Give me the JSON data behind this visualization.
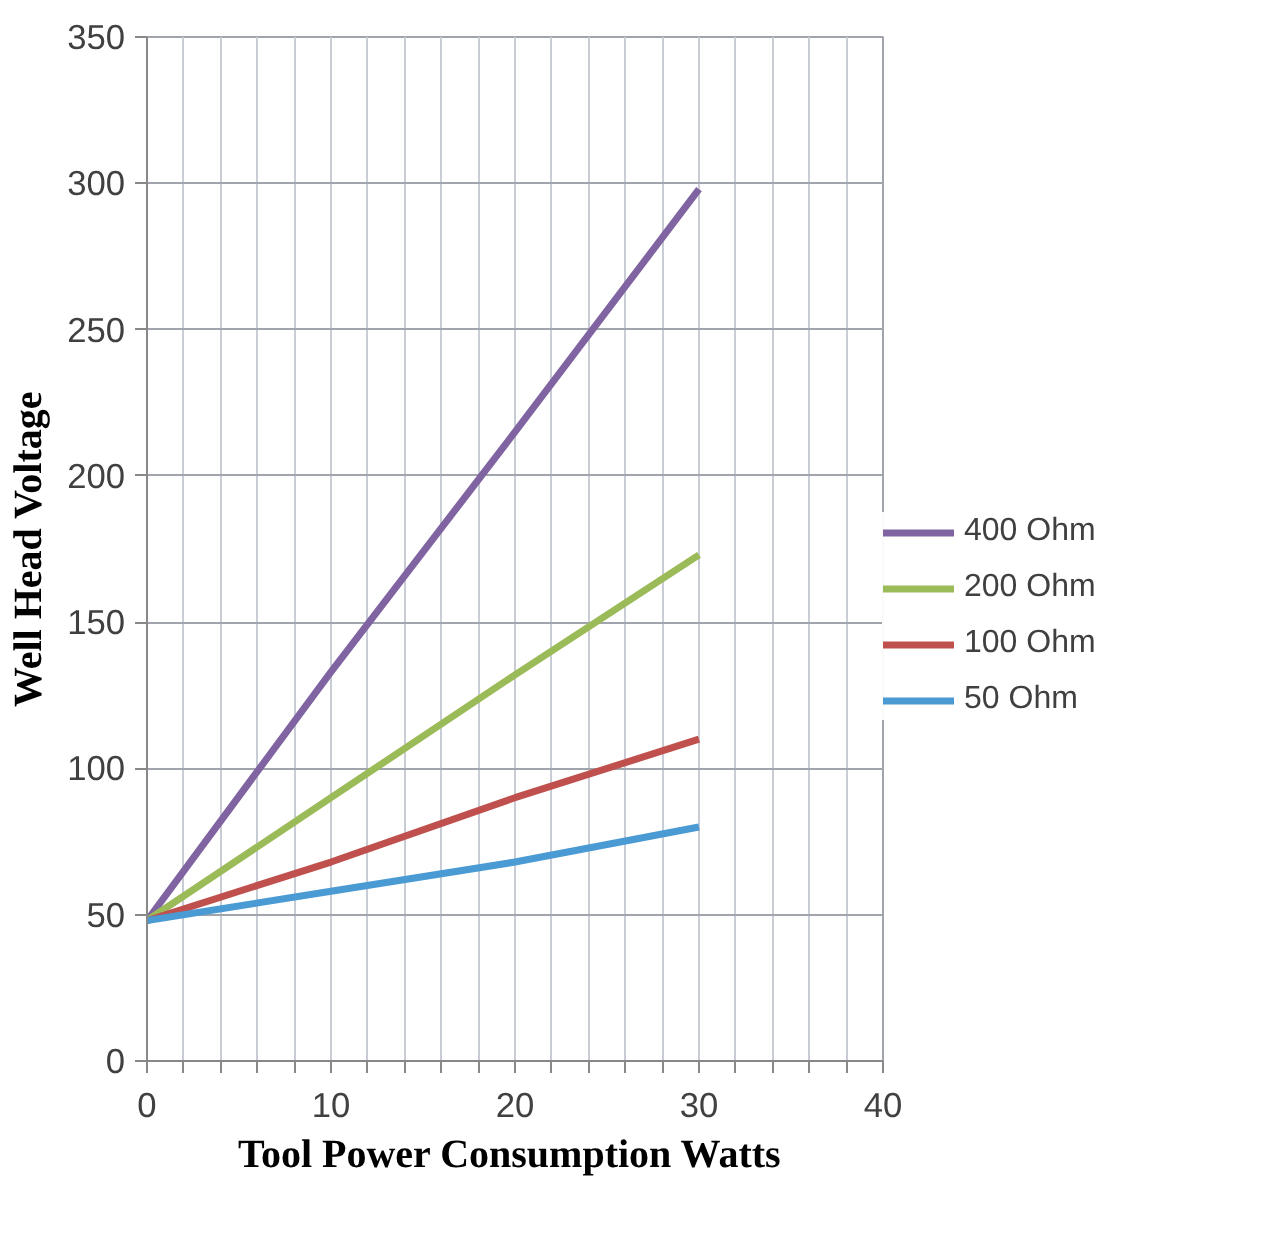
{
  "chart_data": {
    "type": "line",
    "xlabel": "Tool Power Consumption  Watts",
    "ylabel": "Well Head Voltage",
    "x": [
      0,
      10,
      20,
      30
    ],
    "series": [
      {
        "name": "400 Ohm",
        "color": "#8064a2",
        "values": [
          48,
          133,
          215,
          298
        ]
      },
      {
        "name": "200 Ohm",
        "color": "#9bbb59",
        "values": [
          48,
          90,
          132,
          173
        ]
      },
      {
        "name": "100 Ohm",
        "color": "#c0504d",
        "values": [
          48,
          68,
          90,
          110
        ]
      },
      {
        "name": "50 Ohm",
        "color": "#4a9ad4",
        "values": [
          48,
          58,
          68,
          80
        ]
      }
    ],
    "xlim": [
      0,
      40
    ],
    "ylim": [
      0,
      350
    ],
    "xticks": [
      0,
      {
        "value": 2,
        "label": null
      },
      {
        "value": 4,
        "label": null
      },
      {
        "value": 6,
        "label": null
      },
      {
        "value": 8,
        "label": null
      },
      10,
      {
        "value": 12,
        "label": null
      },
      {
        "value": 14,
        "label": null
      },
      {
        "value": 16,
        "label": null
      },
      {
        "value": 18,
        "label": null
      },
      20,
      {
        "value": 22,
        "label": null
      },
      {
        "value": 24,
        "label": null
      },
      {
        "value": 26,
        "label": null
      },
      {
        "value": 28,
        "label": null
      },
      30,
      {
        "value": 32,
        "label": null
      },
      {
        "value": 34,
        "label": null
      },
      {
        "value": 36,
        "label": null
      },
      {
        "value": 38,
        "label": null
      },
      40
    ],
    "yticks": [
      0,
      50,
      100,
      150,
      200,
      250,
      300,
      350
    ],
    "grid": true,
    "legend": "right",
    "marker": "none",
    "line_style": "solid"
  }
}
